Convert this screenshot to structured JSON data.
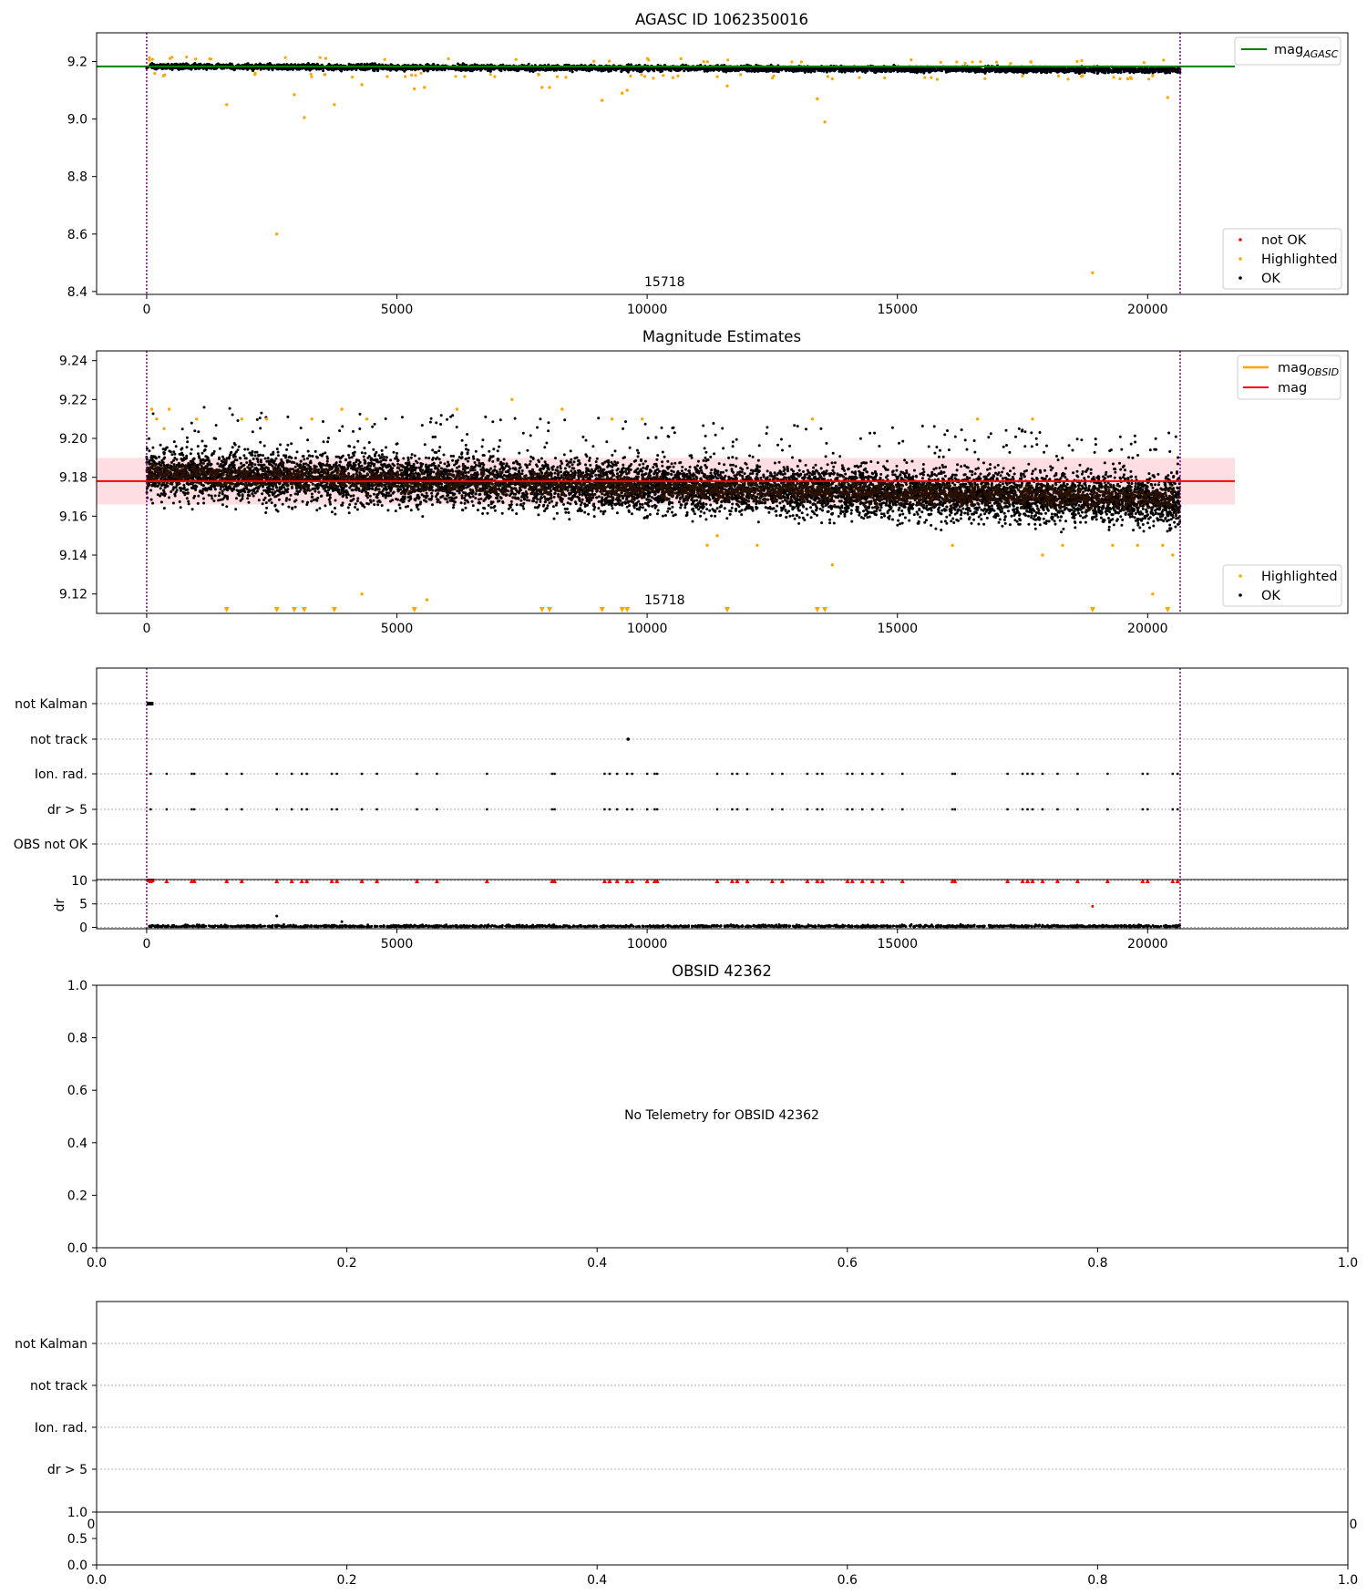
{
  "colors": {
    "ok": "#000000",
    "highlighted": "#ffa500",
    "not_ok": "#ff0000",
    "agasc_line": "#008000",
    "obsid_line": "#ffa500",
    "mag_line": "#ff0000",
    "mag_band": "#ffb6c1",
    "obs_boundary": "#800080",
    "grid": "#b0b0b0"
  },
  "chart_data": [
    {
      "id": "agasc",
      "type": "scatter",
      "title": "AGASC ID 1062350016",
      "xlim": [
        -1000,
        24000
      ],
      "ylim": [
        8.39,
        9.3
      ],
      "xticks": [
        0,
        5000,
        10000,
        15000,
        20000
      ],
      "yticks": [
        8.4,
        8.6,
        8.8,
        9.0,
        9.2
      ],
      "mag_agasc": 9.183,
      "obs_boundaries": [
        0,
        20650
      ],
      "annotation": {
        "text": "15718",
        "x": 10300
      },
      "legend_lines": [
        {
          "label": "mag",
          "sub": "AGASC"
        }
      ],
      "legend_points": [
        "not OK",
        "Highlighted",
        "OK"
      ],
      "band": {
        "x": [
          0,
          20650
        ],
        "mean_start": 9.183,
        "mean_end": 9.17,
        "spread": 0.012
      },
      "highlighted_points": [
        [
          1600,
          9.05
        ],
        [
          2600,
          8.6
        ],
        [
          2950,
          9.085
        ],
        [
          3150,
          9.005
        ],
        [
          3750,
          9.05
        ],
        [
          4300,
          9.12
        ],
        [
          5350,
          9.105
        ],
        [
          5550,
          9.11
        ],
        [
          7900,
          9.11
        ],
        [
          8050,
          9.11
        ],
        [
          9100,
          9.065
        ],
        [
          9500,
          9.09
        ],
        [
          9600,
          9.1
        ],
        [
          11600,
          9.115
        ],
        [
          13400,
          9.07
        ],
        [
          13550,
          8.99
        ],
        [
          13700,
          9.14
        ],
        [
          17500,
          9.15
        ],
        [
          18900,
          8.465
        ],
        [
          20400,
          9.075
        ],
        [
          20100,
          9.15
        ],
        [
          19600,
          9.14
        ]
      ]
    },
    {
      "id": "estimates",
      "type": "scatter",
      "title": "Magnitude Estimates",
      "xlim": [
        -1000,
        24000
      ],
      "ylim": [
        9.11,
        9.245
      ],
      "xticks": [
        0,
        5000,
        10000,
        15000,
        20000
      ],
      "yticks": [
        9.12,
        9.14,
        9.16,
        9.18,
        9.2,
        9.22,
        9.24
      ],
      "mag": 9.178,
      "mag_band": [
        9.166,
        9.19
      ],
      "obs_boundaries": [
        0,
        20650
      ],
      "annotation": {
        "text": "15718",
        "x": 10300
      },
      "legend_lines": [
        {
          "label": "mag",
          "sub": "OBSID"
        },
        {
          "label": "mag",
          "sub": ""
        }
      ],
      "legend_points": [
        "Highlighted",
        "OK"
      ],
      "band": {
        "x": [
          0,
          20650
        ],
        "mean_start": 9.182,
        "mean_end": 9.168,
        "spread": 0.009
      },
      "highlighted_points": [
        [
          100,
          9.215
        ],
        [
          200,
          9.21
        ],
        [
          350,
          9.205
        ],
        [
          450,
          9.215
        ],
        [
          1000,
          9.21
        ],
        [
          1900,
          9.21
        ],
        [
          2400,
          9.21
        ],
        [
          3300,
          9.21
        ],
        [
          3900,
          9.215
        ],
        [
          4400,
          9.21
        ],
        [
          6200,
          9.215
        ],
        [
          7300,
          9.22
        ],
        [
          8300,
          9.215
        ],
        [
          9300,
          9.21
        ],
        [
          9900,
          9.21
        ],
        [
          11200,
          9.145
        ],
        [
          11400,
          9.15
        ],
        [
          12200,
          9.145
        ],
        [
          13300,
          9.21
        ],
        [
          13700,
          9.135
        ],
        [
          16600,
          9.21
        ],
        [
          16100,
          9.145
        ],
        [
          17700,
          9.21
        ],
        [
          17900,
          9.14
        ],
        [
          18300,
          9.145
        ],
        [
          19300,
          9.145
        ],
        [
          19800,
          9.145
        ],
        [
          20100,
          9.12
        ],
        [
          20300,
          9.145
        ],
        [
          20500,
          9.14
        ],
        [
          4300,
          9.12
        ],
        [
          5600,
          9.117
        ]
      ],
      "floor_points": [
        1600,
        2600,
        2950,
        3150,
        3750,
        5350,
        7900,
        8050,
        9100,
        9500,
        9600,
        11600,
        13400,
        13550,
        18900,
        20400
      ]
    },
    {
      "id": "flags",
      "type": "scatter",
      "xlim": [
        -1000,
        24000
      ],
      "xticks": [
        0,
        5000,
        10000,
        15000,
        20000
      ],
      "categories": [
        "not Kalman",
        "not track",
        "Ion. rad.",
        "dr > 5",
        "OBS not OK"
      ],
      "obs_boundaries": [
        0,
        20650
      ],
      "flag_events": [
        80,
        400,
        900,
        950,
        1600,
        1900,
        2600,
        2900,
        3100,
        3200,
        3700,
        3800,
        4300,
        4600,
        5400,
        5800,
        6800,
        8100,
        8150,
        9150,
        9250,
        9400,
        9600,
        9700,
        10000,
        10150,
        10200,
        11400,
        11700,
        11800,
        12000,
        12500,
        12700,
        13200,
        13400,
        13500,
        14000,
        14100,
        14300,
        14500,
        14700,
        15100,
        16100,
        16150,
        17200,
        17500,
        17600,
        17700,
        17900,
        18200,
        18600,
        19200,
        19900,
        20000,
        20500,
        20600
      ],
      "not_kalman_x": [
        0,
        100
      ],
      "not_track_x": [
        9620
      ],
      "dr_ylabel": "dr",
      "dr_yticks": [
        0,
        5,
        10
      ],
      "dr_ylim": [
        -0.3,
        10.2
      ],
      "dr_outliers": [
        [
          2600,
          2.4
        ],
        [
          18900,
          4.5
        ],
        [
          3900,
          1.2
        ]
      ]
    },
    {
      "id": "obsid",
      "type": "scatter",
      "title": "OBSID 42362",
      "xlim": [
        0,
        1
      ],
      "ylim": [
        0,
        1
      ],
      "xticks": [
        "0.0",
        "0.2",
        "0.4",
        "0.6",
        "0.8",
        "1.0"
      ],
      "yticks": [
        "0.0",
        "0.2",
        "0.4",
        "0.6",
        "0.8",
        "1.0"
      ],
      "message": "No Telemetry for OBSID 42362"
    },
    {
      "id": "obsid_flags",
      "type": "scatter",
      "categories": [
        "not Kalman",
        "not track",
        "Ion. rad.",
        "dr > 5"
      ],
      "xticks": [
        "0.0",
        "0.2",
        "0.4",
        "0.6",
        "0.8",
        "1.0"
      ],
      "yticks": [
        "0.0",
        "0.5",
        "1.0"
      ],
      "clipped_ticks": [
        "0",
        "0"
      ]
    }
  ]
}
